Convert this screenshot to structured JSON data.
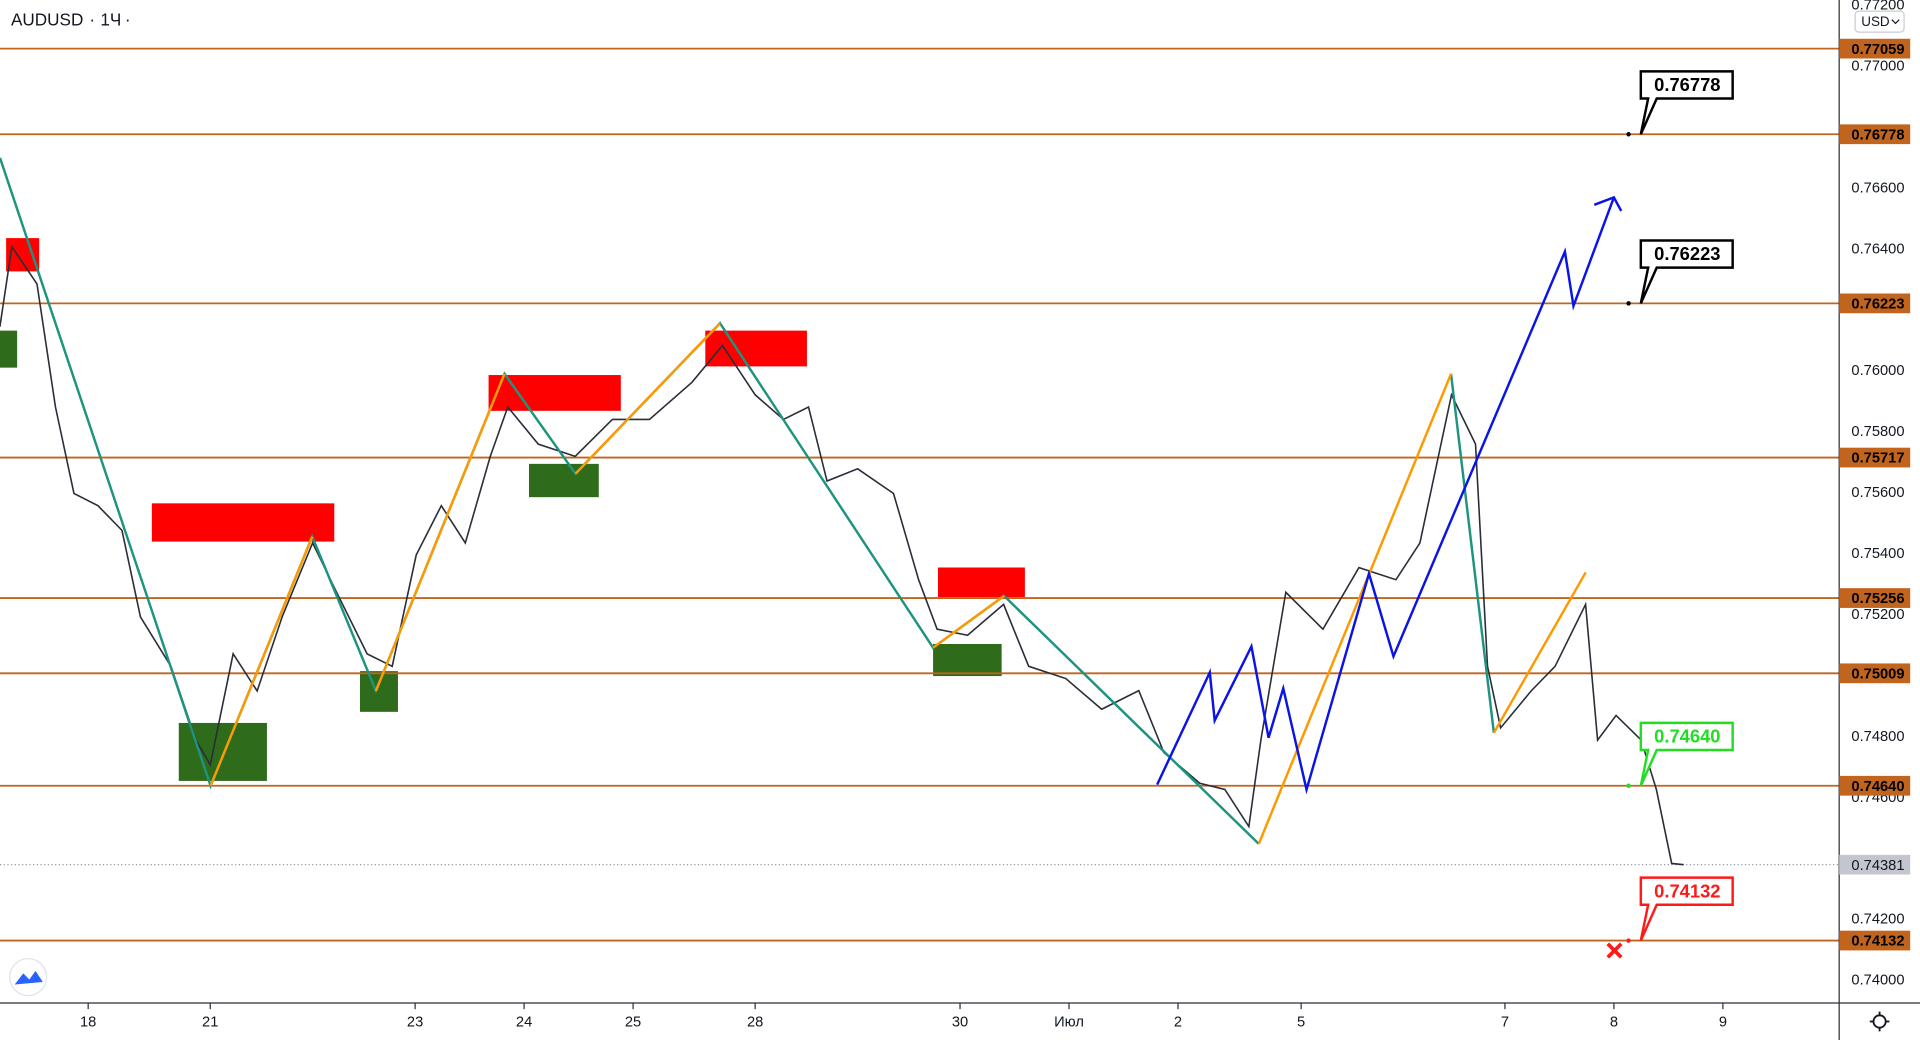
{
  "chart_data": {
    "type": "line",
    "symbol": "AUDUSD",
    "interval": "1Ч",
    "currency": "USD",
    "color": "#2a2e39",
    "xlim": [
      -0.809,
      16.067
    ],
    "ylim": [
      0.739271,
      0.772186
    ],
    "xticks": [
      {
        "value": 0,
        "label": "18"
      },
      {
        "value": 1.12,
        "label": "21"
      },
      {
        "value": 3.0,
        "label": "23"
      },
      {
        "value": 4.0,
        "label": "24"
      },
      {
        "value": 5.0,
        "label": "25"
      },
      {
        "value": 6.12,
        "label": "28"
      },
      {
        "value": 8.0,
        "label": "30"
      },
      {
        "value": 9.0,
        "label": "Июл"
      },
      {
        "value": 10.0,
        "label": "2"
      },
      {
        "value": 11.13,
        "label": "5"
      },
      {
        "value": 13.0,
        "label": "7"
      },
      {
        "value": 14.0,
        "label": "8"
      },
      {
        "value": 15.0,
        "label": "9"
      }
    ],
    "yticks": [
      {
        "value": 0.772,
        "label": "0.77200"
      },
      {
        "value": 0.77,
        "label": "0.77000"
      },
      {
        "value": 0.766,
        "label": "0.76600"
      },
      {
        "value": 0.764,
        "label": "0.76400"
      },
      {
        "value": 0.76,
        "label": "0.76000"
      },
      {
        "value": 0.758,
        "label": "0.75800"
      },
      {
        "value": 0.756,
        "label": "0.75600"
      },
      {
        "value": 0.754,
        "label": "0.75400"
      },
      {
        "value": 0.752,
        "label": "0.75200"
      },
      {
        "value": 0.748,
        "label": "0.74800"
      },
      {
        "value": 0.746,
        "label": "0.74600"
      },
      {
        "value": 0.742,
        "label": "0.74200"
      },
      {
        "value": 0.74,
        "label": "0.74000"
      }
    ],
    "x": [
      -0.81,
      -0.7,
      -0.47,
      -0.3,
      -0.13,
      0.09,
      0.31,
      0.48,
      0.76,
      0.99,
      1.12,
      1.33,
      1.55,
      1.78,
      2.06,
      2.28,
      2.56,
      2.79,
      3.01,
      3.24,
      3.46,
      3.69,
      3.85,
      4.13,
      4.47,
      4.81,
      5.15,
      5.54,
      5.82,
      6.12,
      6.38,
      6.61,
      6.78,
      7.06,
      7.39,
      7.62,
      7.79,
      8.07,
      8.4,
      8.63,
      8.97,
      9.3,
      9.64,
      9.87,
      10.2,
      10.43,
      10.65,
      10.76,
      10.99,
      11.33,
      11.66,
      12.0,
      12.22,
      12.51,
      12.73,
      12.84,
      12.96,
      13.24,
      13.46,
      13.74,
      13.85,
      14.02,
      14.25,
      14.39,
      14.53,
      14.64
    ],
    "values": [
      0.76146,
      0.76409,
      0.76287,
      0.75883,
      0.75599,
      0.75559,
      0.75478,
      0.75194,
      0.75032,
      0.74789,
      0.74709,
      0.75073,
      0.74951,
      0.75194,
      0.75437,
      0.75275,
      0.75073,
      0.75032,
      0.75397,
      0.75559,
      0.75437,
      0.75721,
      0.75883,
      0.75761,
      0.75721,
      0.75842,
      0.75842,
      0.75964,
      0.76085,
      0.75923,
      0.75842,
      0.75883,
      0.7564,
      0.7568,
      0.75599,
      0.75316,
      0.75154,
      0.75134,
      0.75235,
      0.75032,
      0.74992,
      0.74891,
      0.74952,
      0.74749,
      0.74648,
      0.74628,
      0.74506,
      0.7479,
      0.75275,
      0.75154,
      0.75356,
      0.75316,
      0.75437,
      0.75923,
      0.75761,
      0.75032,
      0.7483,
      0.74951,
      0.75032,
      0.75235,
      0.7479,
      0.74871,
      0.7479,
      0.74628,
      0.74385,
      0.74381
    ],
    "last_price": {
      "value": 0.74381,
      "label": "0.74381"
    },
    "level_color": "#c0641e",
    "levels": [
      {
        "value": 0.77059,
        "label": "0.77059"
      },
      {
        "value": 0.76778,
        "label": "0.76778"
      },
      {
        "value": 0.76223,
        "label": "0.76223"
      },
      {
        "value": 0.75717,
        "label": "0.75717"
      },
      {
        "value": 0.75256,
        "label": "0.75256"
      },
      {
        "value": 0.75009,
        "label": "0.75009"
      },
      {
        "value": 0.7464,
        "label": "0.74640"
      },
      {
        "value": 0.74132,
        "label": "0.74132"
      }
    ],
    "callouts": [
      {
        "value": 0.76778,
        "label": "0.76778",
        "color": "#000000"
      },
      {
        "value": 0.76223,
        "label": "0.76223",
        "color": "#000000"
      },
      {
        "value": 0.7464,
        "label": "0.74640",
        "color": "#22dd22"
      },
      {
        "value": 0.74132,
        "label": "0.74132",
        "color": "#ff1a1a"
      }
    ]
  }
}
